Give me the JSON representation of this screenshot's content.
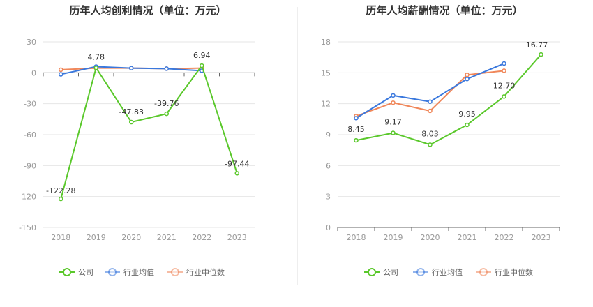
{
  "chart_data": [
    {
      "type": "line",
      "title": "历年人均创利情况（单位：万元）",
      "categories": [
        "2018",
        "2019",
        "2020",
        "2021",
        "2022",
        "2023"
      ],
      "ylim": [
        -150,
        30
      ],
      "yticks": [
        30,
        0,
        -30,
        -60,
        -90,
        -120,
        -150
      ],
      "grid": true,
      "legend_position": "bottom",
      "series": [
        {
          "name": "公司",
          "color": "#5ac82b",
          "values": [
            -122.28,
            4.78,
            -47.83,
            -39.76,
            6.94,
            -97.44
          ],
          "labels": [
            "-122.28",
            "4.78",
            "-47.83",
            "-39.76",
            "6.94",
            "-97.44"
          ]
        },
        {
          "name": "行业均值",
          "color": "#3a78dd",
          "values": [
            -1.5,
            6.0,
            4.5,
            4.0,
            2.0,
            null
          ]
        },
        {
          "name": "行业中位数",
          "color": "#f0875a",
          "values": [
            3.0,
            4.5,
            4.5,
            4.0,
            4.5,
            null
          ]
        }
      ]
    },
    {
      "type": "line",
      "title": "历年人均薪酬情况（单位：万元）",
      "categories": [
        "2018",
        "2019",
        "2020",
        "2021",
        "2022",
        "2023"
      ],
      "ylim": [
        0,
        18
      ],
      "yticks": [
        18,
        15,
        12,
        9,
        6,
        3,
        0
      ],
      "grid": true,
      "legend_position": "bottom",
      "series": [
        {
          "name": "公司",
          "color": "#5ac82b",
          "values": [
            8.45,
            9.17,
            8.03,
            9.95,
            12.7,
            16.77
          ],
          "labels": [
            "8.45",
            "9.17",
            "8.03",
            "9.95",
            "12.70",
            "16.77"
          ]
        },
        {
          "name": "行业均值",
          "color": "#3a78dd",
          "values": [
            10.6,
            12.8,
            12.2,
            14.4,
            15.9,
            null
          ]
        },
        {
          "name": "行业中位数",
          "color": "#f0875a",
          "values": [
            10.8,
            12.1,
            11.3,
            14.8,
            15.2,
            null
          ]
        }
      ]
    }
  ]
}
